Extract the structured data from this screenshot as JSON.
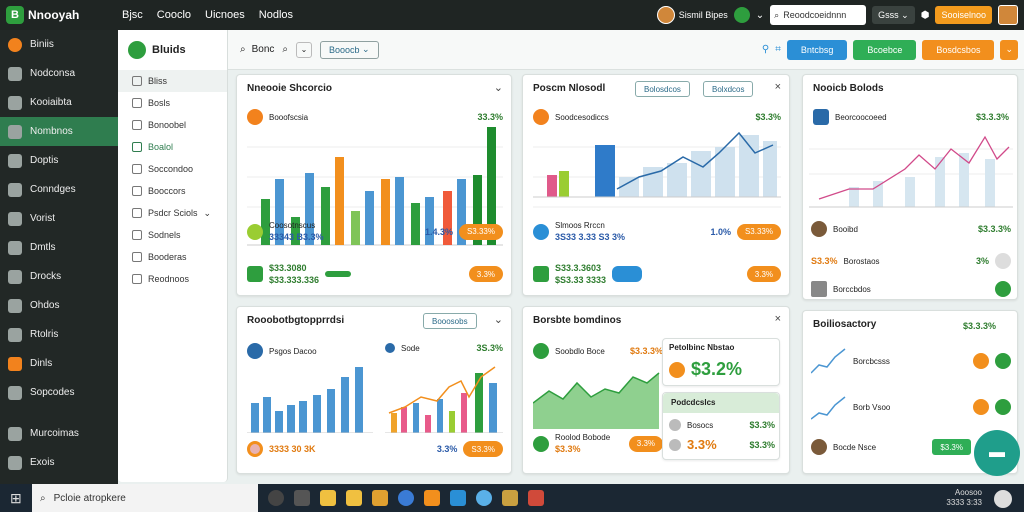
{
  "topbar": {
    "app": "Nnooyah",
    "nav": [
      "Bjsc",
      "Cooclo",
      "Uicnoes",
      "Nodlos"
    ],
    "user": "Sismil Bipes",
    "search": "Reoodcoeidnnn",
    "btn_dark": "Gsss",
    "btn_orange": "Sooiselnoo"
  },
  "sidebar": {
    "items": [
      "Biniis",
      "Nodconsa",
      "Kooiaibta",
      "Nombnos",
      "Doptis",
      "Conndges",
      "Vorist",
      "Dmtls",
      "Drocks",
      "Ohdos",
      "Rtolris",
      "Dinls",
      "Sopcodes",
      "Murcoimas",
      "Exois"
    ]
  },
  "subsidebar": {
    "title": "Bluids",
    "items": [
      "Bliss",
      "Bosls",
      "Bonoobel",
      "Boalol",
      "Soccondoo",
      "Booccors",
      "Psdcr Sciols",
      "Sodnels",
      "Booderas",
      "Reodnoos"
    ]
  },
  "toolbar": {
    "search": "Bonc",
    "pill": "Booocb",
    "btn1": "Bntcbsg",
    "btn2": "Bcoebce",
    "btn3": "Bosdcsbos"
  },
  "card1": {
    "title": "Nneooie Shcorcio",
    "row1": "Booofscsia",
    "pct1": "33.3%",
    "r2a": "Coosotnscus",
    "r2b": "33343 B3.3%",
    "pct2": "1.4.3%",
    "badge2": "S3.33%",
    "r3a": "$33.3080",
    "r3b": "$33.333.336",
    "badge3": "3.3%"
  },
  "card2": {
    "title": "Poscm Nlosodl",
    "ob1": "Bolosdcos",
    "ob2": "Bolxdcos",
    "row1": "Soodcesodiccs",
    "pct1": "$3.3%",
    "r2a": "Slmoos Rrccn",
    "r2b": "3S33 3.33 S3 3%",
    "pct2": "1.0%",
    "badge2": "S3.33%",
    "r3a": "S33.3.3603",
    "r3b": "$S3.33 3333",
    "badge3": "3.3%"
  },
  "card3": {
    "title": "Nooicb Bolods",
    "pct1": "$3.3.3%",
    "row1": "Beorcoocoeed",
    "p1": "Booibd",
    "pp1": "$3.3.3%",
    "p2a": "S3.3%",
    "p2b": "Borostaos",
    "p2c": "3%",
    "p3": "Borccbdos"
  },
  "card4": {
    "title": "Rooobotbgtopprrdsi",
    "ob": "Booosobs",
    "r1": "Psgos Dacoo",
    "r2": "Sode",
    "pct2": "3S.3%",
    "r3": "3333 30 3K",
    "pct3": "3.3%",
    "badge3": "S3.3%"
  },
  "card5": {
    "title": "Borsbte bomdinos",
    "r1": "Soobdlo Boce",
    "pct1": "$3.3.3%",
    "r2": "Roolod Bobode",
    "pct2": "$3.3%",
    "badge2": "3.3%"
  },
  "card6": {
    "title": "Petolbinc Nbstao",
    "big": "$3.2%",
    "sub": "Podcdcslcs",
    "s1": "Bosocs",
    "spct1": "$3.3%",
    "big2": "3.3%",
    "spct2": "$3.3%"
  },
  "card7": {
    "title": "Boiliosactory",
    "pct": "$3.3.3%",
    "r1": "Borcbcsss",
    "r2": "Borb Vsoo",
    "r3": "Bocde Nsce",
    "badge": "$3.3%"
  },
  "taskbar": {
    "search": "Pcloie atropkere",
    "time": "Aoosoo",
    "date": "3333 3:33"
  }
}
